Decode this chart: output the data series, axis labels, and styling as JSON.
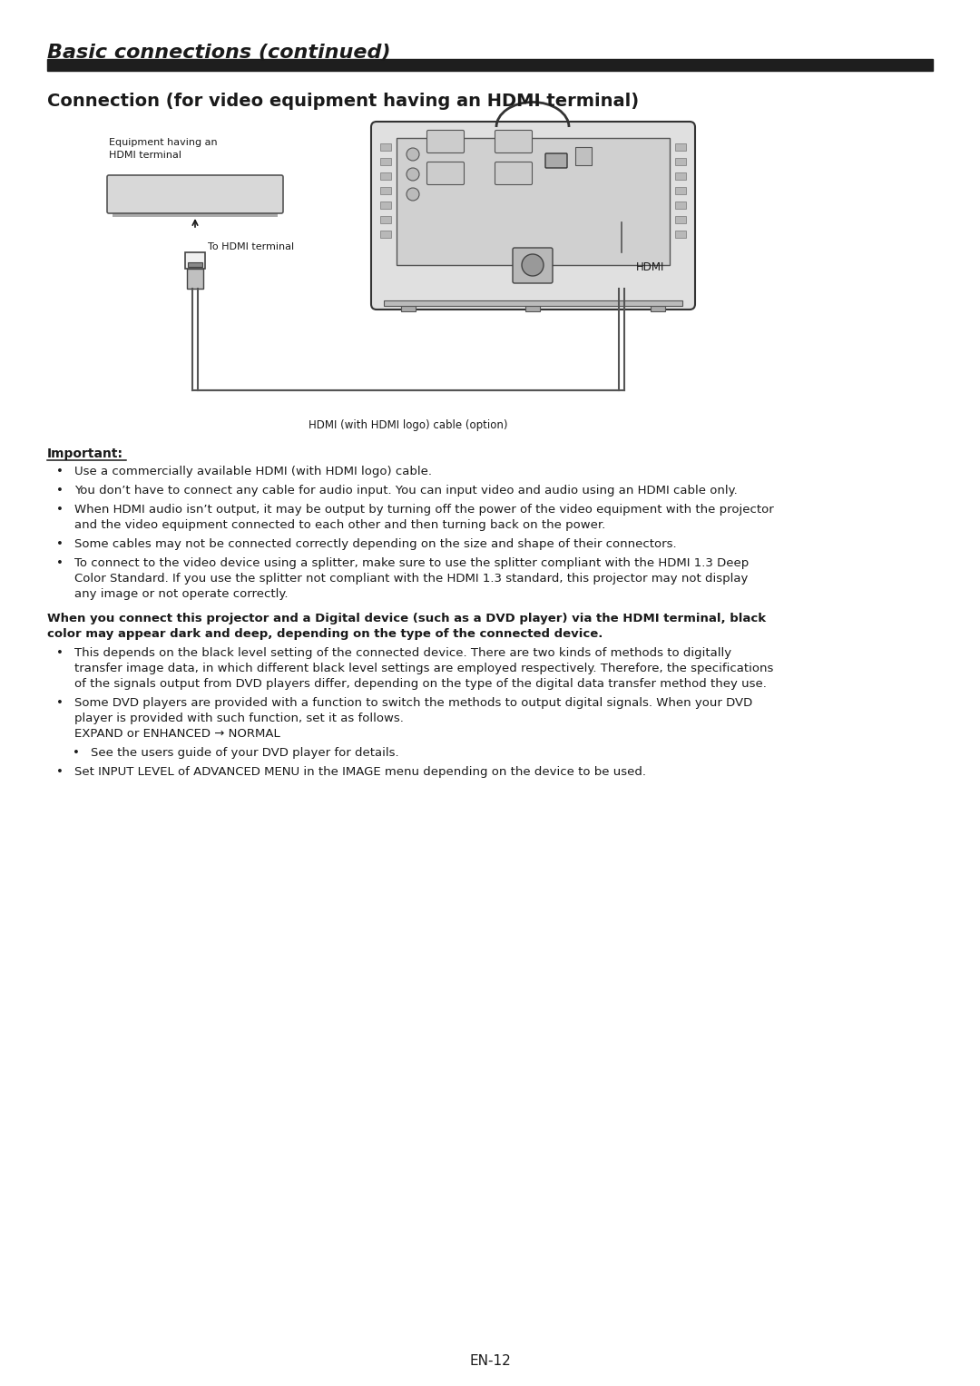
{
  "title_italic": "Basic connections (continued)",
  "section_title": "Connection (for video equipment having an HDMI terminal)",
  "diagram_label_equipment": "Equipment having an\nHDMI terminal",
  "diagram_label_to_hdmi": "To HDMI terminal",
  "diagram_label_hdmi": "HDMI",
  "diagram_cable_label": "HDMI (with HDMI logo) cable (option)",
  "important_label": "Important:",
  "bullet1": "Use a commercially available HDMI (with HDMI logo) cable.",
  "bullet2": "You don’t have to connect any cable for audio input. You can input video and audio using an HDMI cable only.",
  "bullet3_line1": "When HDMI audio isn’t output, it may be output by turning off the power of the video equipment with the projector",
  "bullet3_line2": "and the video equipment connected to each other and then turning back on the power.",
  "bullet4": "Some cables may not be connected correctly depending on the size and shape of their connectors.",
  "bullet5_line1": "To connect to the video device using a splitter, make sure to use the splitter compliant with the HDMI 1.3 Deep",
  "bullet5_line2": "Color Standard. If you use the splitter not compliant with the HDMI 1.3 standard, this projector may not display",
  "bullet5_line3": "any image or not operate correctly.",
  "bold_para_line1": "When you connect this projector and a Digital device (such as a DVD player) via the HDMI terminal, black",
  "bold_para_line2": "color may appear dark and deep, depending on the type of the connected device.",
  "b2_line1": "This depends on the black level setting of the connected device. There are two kinds of methods to digitally",
  "b2_line2": "transfer image data, in which different black level settings are employed respectively. Therefore, the specifications",
  "b2_line3": "of the signals output from DVD players differ, depending on the type of the digital data transfer method they use.",
  "b3_line1": "Some DVD players are provided with a function to switch the methods to output digital signals. When your DVD",
  "b3_line2": "player is provided with such function, set it as follows.",
  "b3_line3": "EXPAND or ENHANCED → NORMAL",
  "b3_sub": "See the users guide of your DVD player for details.",
  "b4": "Set INPUT LEVEL of ADVANCED MENU in the IMAGE menu depending on the device to be used.",
  "page_number": "EN-12",
  "bg_color": "#ffffff",
  "text_color": "#1a1a1a",
  "bar_color": "#1e1e1e"
}
